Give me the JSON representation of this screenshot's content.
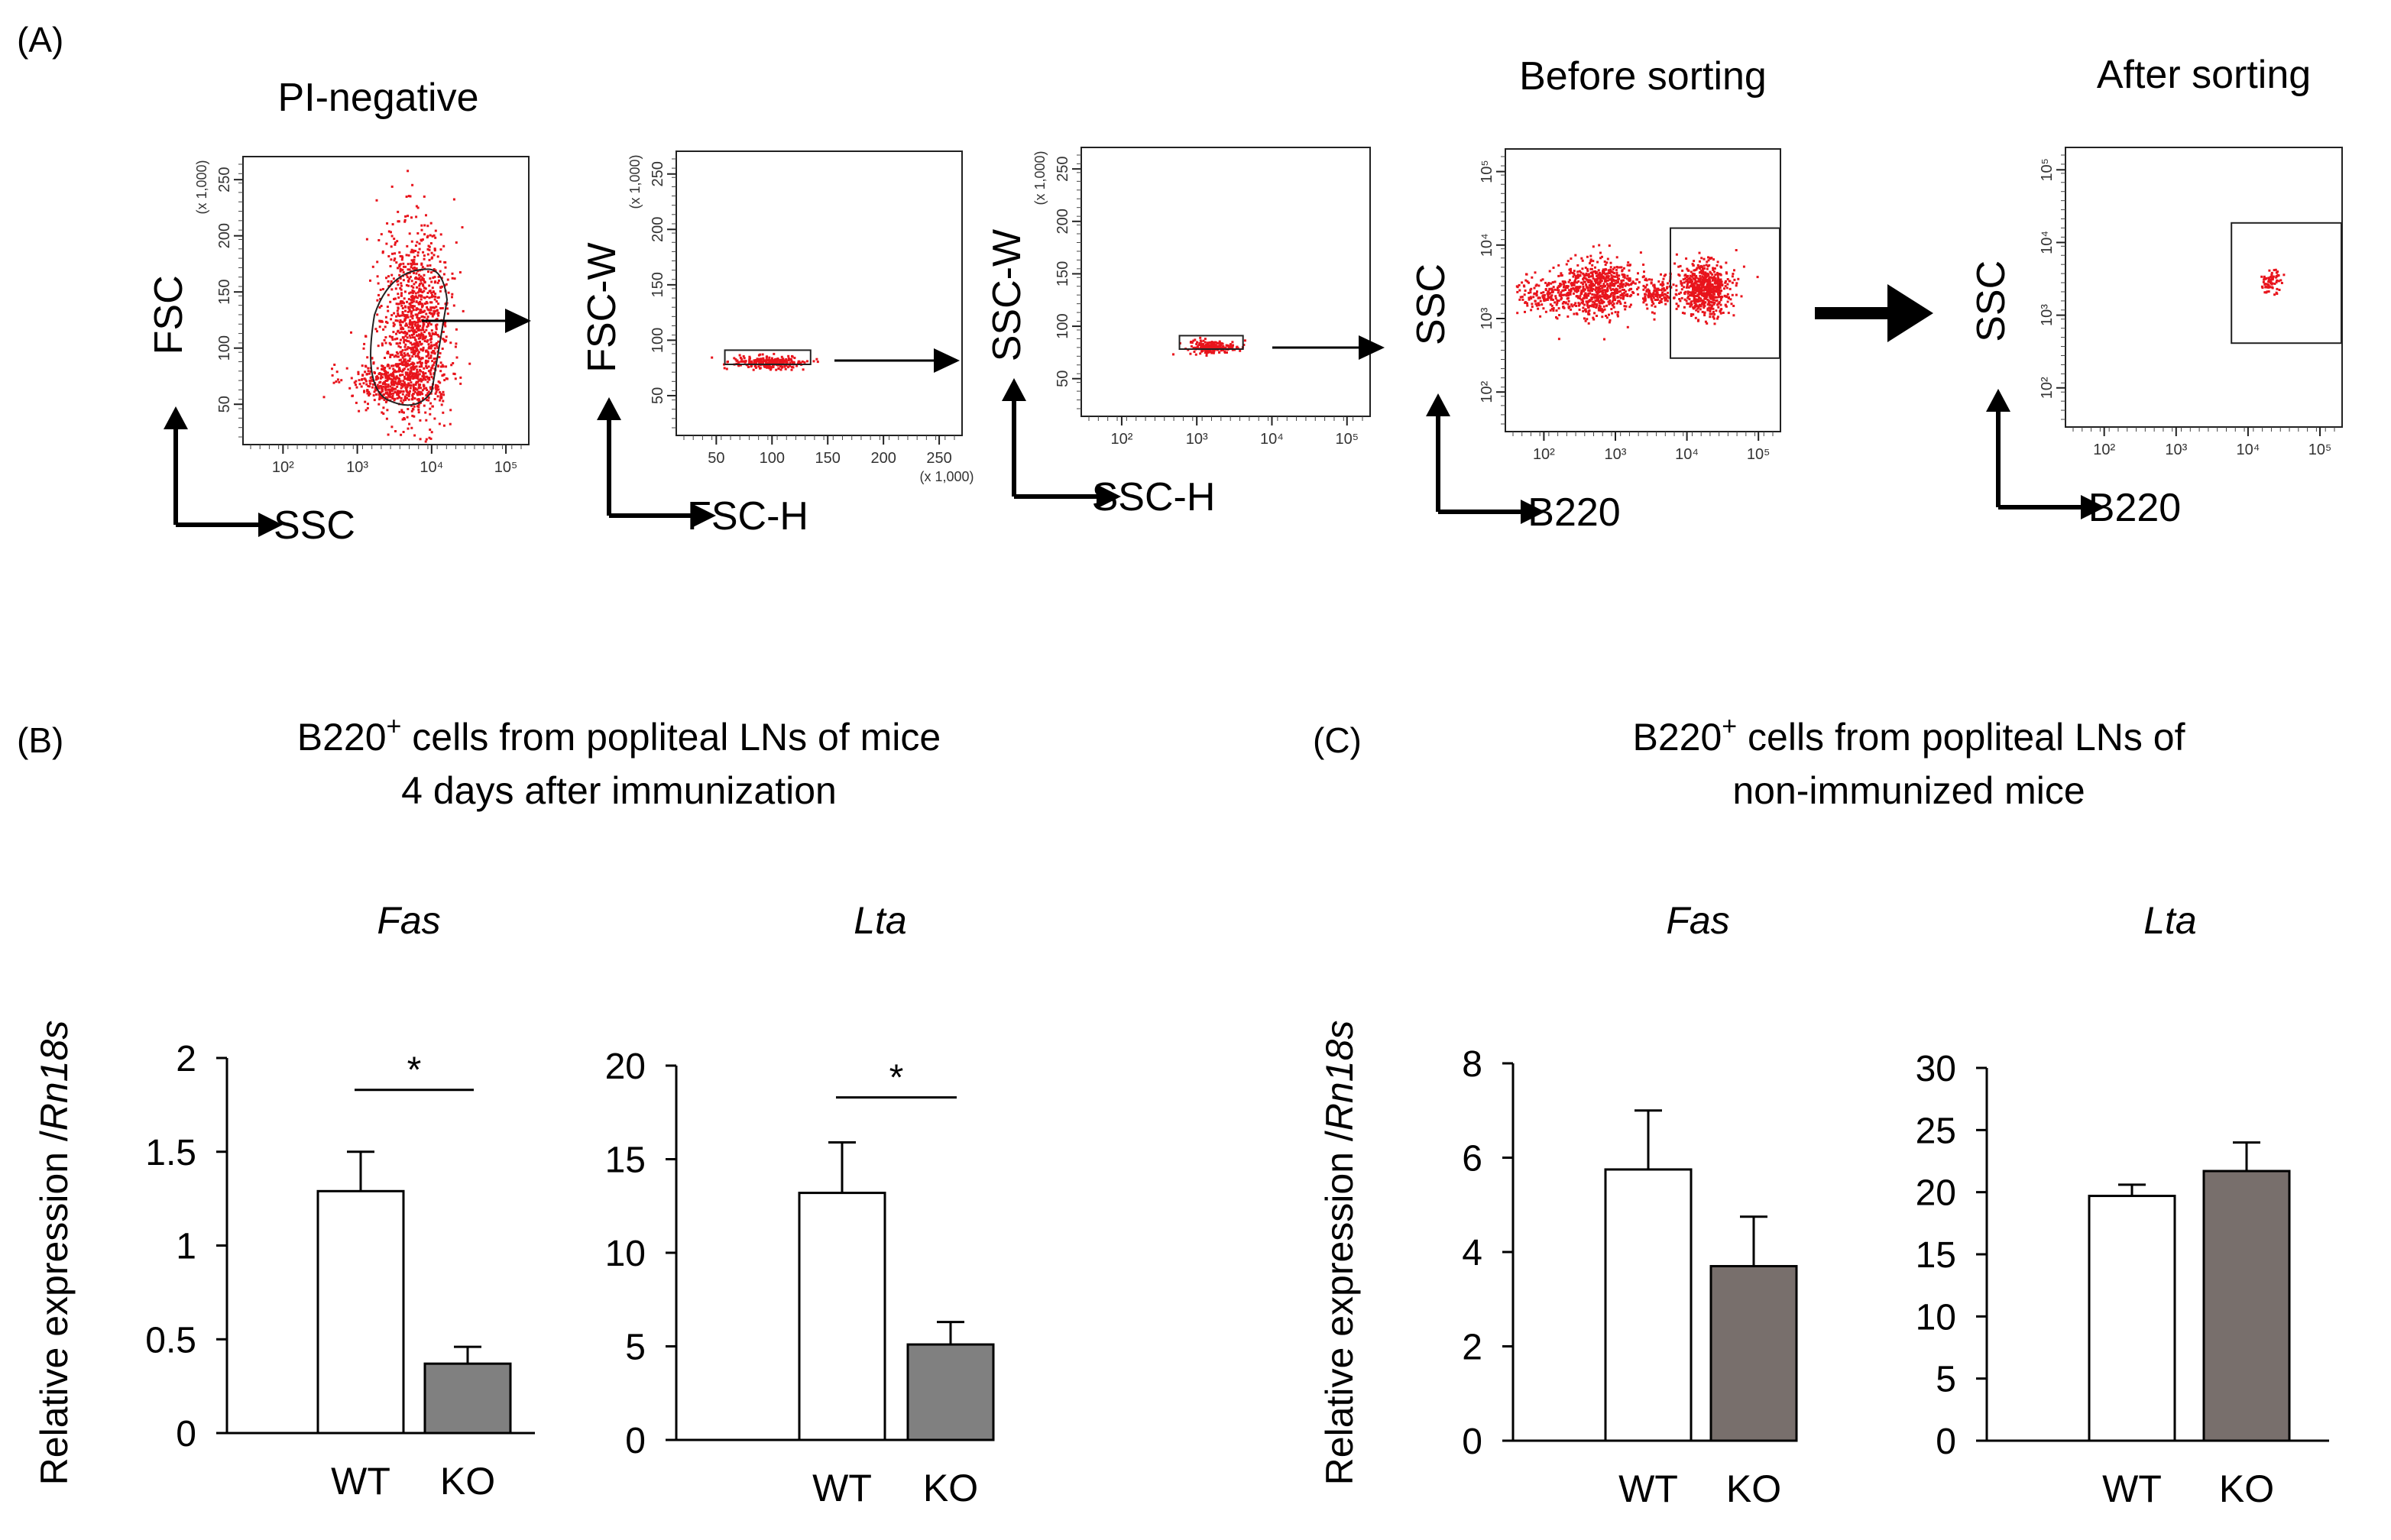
{
  "panels": {
    "a": "(A)",
    "b": "(B)",
    "c": "(C)"
  },
  "colors": {
    "events": "#e8141c",
    "wt_fill": "#ffffff",
    "ko_fill_b": "#808080",
    "ko_fill_c": "#786f6c",
    "axis": "#000000"
  },
  "flow_plots": [
    {
      "title": "PI-negative",
      "x_name": "SSC",
      "y_name": "FSC",
      "x_ticks": [
        "10²",
        "10³",
        "10⁴",
        "10⁵"
      ],
      "y_ticks": [
        "250",
        "200",
        "150",
        "100",
        "50"
      ],
      "y_multiplier": "(x 1,000)",
      "x_multiplier": ""
    },
    {
      "title": "",
      "x_name": "FSC-H",
      "y_name": "FSC-W",
      "x_ticks": [
        "50",
        "100",
        "150",
        "200",
        "250"
      ],
      "y_ticks": [
        "250",
        "200",
        "150",
        "100",
        "50"
      ],
      "y_multiplier": "(x 1,000)",
      "x_multiplier": "(x 1,000)"
    },
    {
      "title": "",
      "x_name": "SSC-H",
      "y_name": "SSC-W",
      "x_ticks": [
        "10²",
        "10³",
        "10⁴",
        "10⁵"
      ],
      "y_ticks": [
        "250",
        "200",
        "150",
        "100",
        "50"
      ],
      "y_multiplier": "(x 1,000)",
      "x_multiplier": ""
    },
    {
      "title": "Before sorting",
      "x_name": "B220",
      "y_name": "SSC",
      "x_ticks": [
        "10²",
        "10³",
        "10⁴",
        "10⁵"
      ],
      "y_ticks": [
        "10⁵",
        "10⁴",
        "10³",
        "10²"
      ],
      "y_multiplier": "",
      "x_multiplier": ""
    },
    {
      "title": "After sorting",
      "x_name": "B220",
      "y_name": "SSC",
      "x_ticks": [
        "10²",
        "10³",
        "10⁴",
        "10⁵"
      ],
      "y_ticks": [
        "10⁵",
        "10⁴",
        "10³",
        "10²"
      ],
      "y_multiplier": "",
      "x_multiplier": ""
    }
  ],
  "section_b": {
    "title_line1_pre": "B220",
    "title_line1_sup": "+",
    "title_line1_post": " cells from popliteal LNs of mice",
    "title_line2": "4 days after immunization",
    "ylabel_pre": "Relative expression /",
    "ylabel_italic": "Rn18s"
  },
  "section_c": {
    "title_line1_pre": "B220",
    "title_line1_sup": "+",
    "title_line1_post": " cells from popliteal LNs of",
    "title_line2": "non-immunized mice",
    "ylabel_pre": "Relative expression /",
    "ylabel_italic": "Rn18s"
  },
  "chart_data": [
    {
      "type": "bar",
      "panel": "B",
      "title": "Fas",
      "ylabel": "Relative expression /Rn18s",
      "categories": [
        "WT",
        "KO"
      ],
      "values": [
        1.29,
        0.37
      ],
      "errors": [
        0.21,
        0.09
      ],
      "ylim": [
        0,
        2
      ],
      "yticks": [
        0,
        0.5,
        1,
        1.5,
        2
      ],
      "ytick_labels": [
        "0",
        "0.5",
        "1",
        "1.5",
        "2"
      ],
      "significance": "*"
    },
    {
      "type": "bar",
      "panel": "B",
      "title": "Lta",
      "ylabel": "",
      "categories": [
        "WT",
        "KO"
      ],
      "values": [
        13.2,
        5.1
      ],
      "errors": [
        2.7,
        1.2
      ],
      "ylim": [
        0,
        20
      ],
      "yticks": [
        0,
        5,
        10,
        15,
        20
      ],
      "ytick_labels": [
        "0",
        "5",
        "10",
        "15",
        "20"
      ],
      "significance": "*"
    },
    {
      "type": "bar",
      "panel": "C",
      "title": "Fas",
      "ylabel": "Relative expression /Rn18s",
      "categories": [
        "WT",
        "KO"
      ],
      "values": [
        5.75,
        3.7
      ],
      "errors": [
        1.25,
        1.05
      ],
      "ylim": [
        0,
        8
      ],
      "yticks": [
        0,
        2,
        4,
        6,
        8
      ],
      "ytick_labels": [
        "0",
        "2",
        "4",
        "6",
        "8"
      ],
      "significance": ""
    },
    {
      "type": "bar",
      "panel": "C",
      "title": "Lta",
      "ylabel": "",
      "categories": [
        "WT",
        "KO"
      ],
      "values": [
        19.7,
        21.7
      ],
      "errors": [
        0.9,
        2.3
      ],
      "ylim": [
        0,
        30
      ],
      "yticks": [
        0,
        5,
        10,
        15,
        20,
        25,
        30
      ],
      "ytick_labels": [
        "0",
        "5",
        "10",
        "15",
        "20",
        "25",
        "30"
      ],
      "significance": ""
    }
  ]
}
